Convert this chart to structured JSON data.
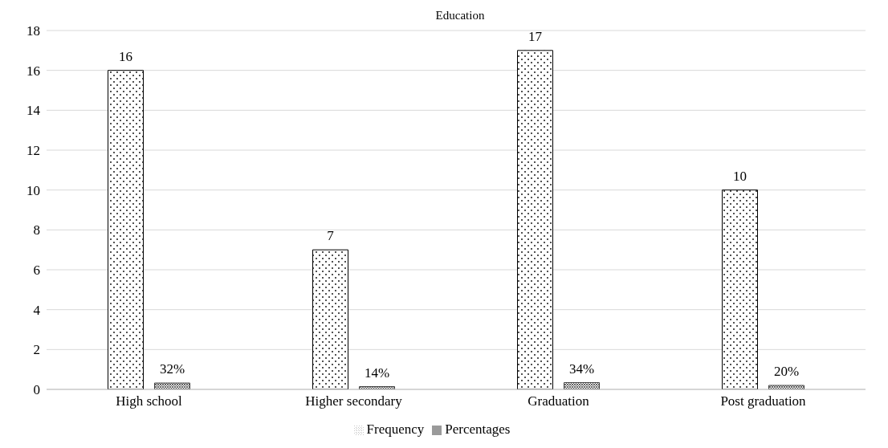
{
  "chart_data": {
    "type": "bar",
    "title": "Education",
    "categories": [
      "High school",
      "Higher secondary",
      "Graduation",
      "Post graduation"
    ],
    "series": [
      {
        "name": "Frequency",
        "color": "#000000",
        "values": [
          16,
          7,
          17,
          10
        ],
        "value_labels": [
          "16",
          "7",
          "17",
          "10"
        ]
      },
      {
        "name": "Percentages",
        "color": "#404040",
        "values": [
          0.32,
          0.14,
          0.34,
          0.2
        ],
        "value_labels": [
          "32%",
          "14%",
          "34%",
          "20%"
        ]
      }
    ],
    "ylim": [
      0,
      18
    ],
    "yticks": [
      0,
      2,
      4,
      6,
      8,
      10,
      12,
      14,
      16,
      18
    ],
    "grid": "y",
    "legend": "bottom"
  }
}
